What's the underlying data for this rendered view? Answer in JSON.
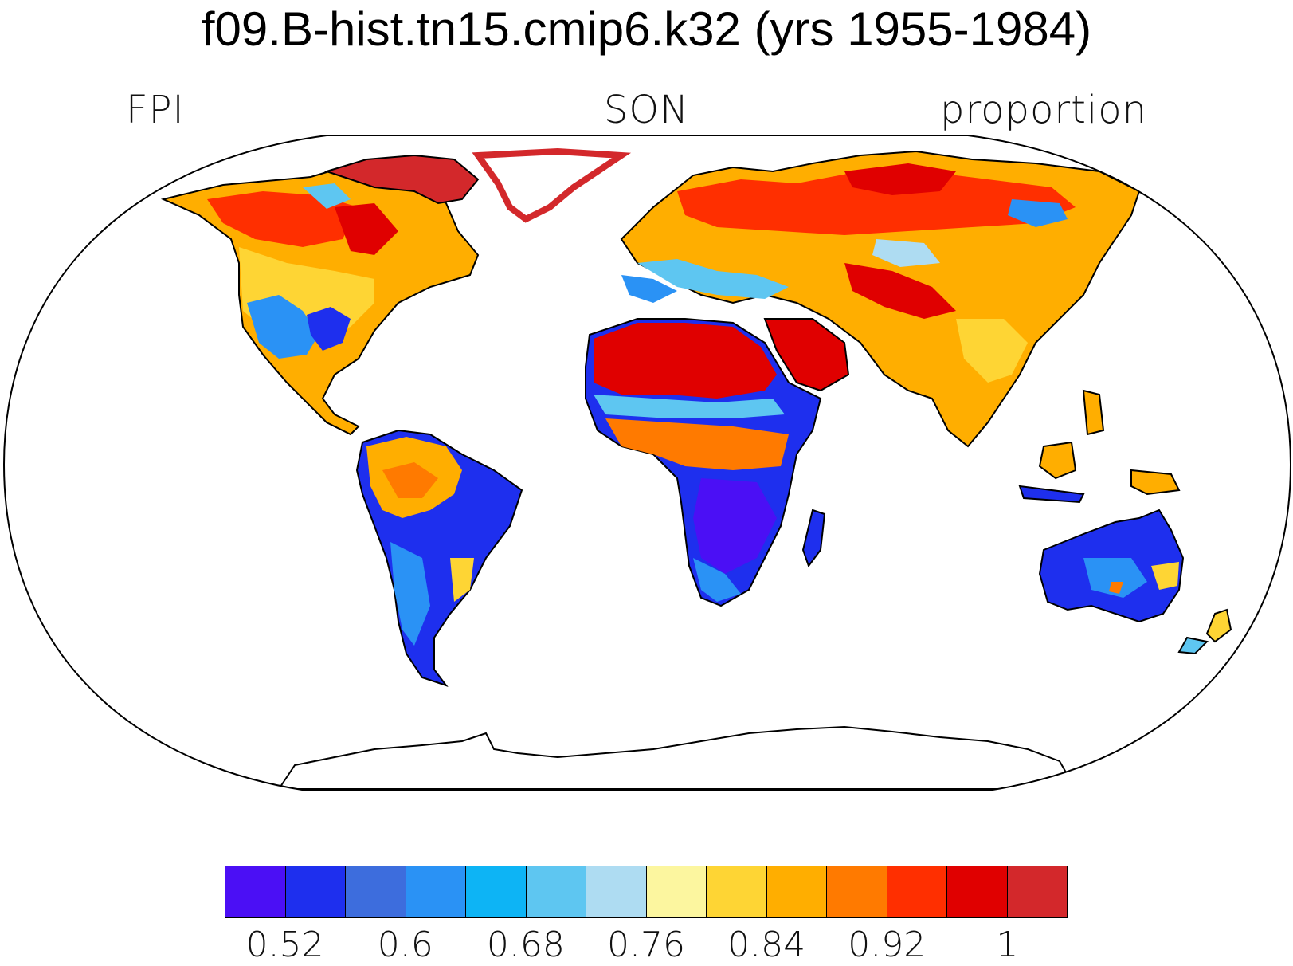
{
  "title": "f09.B-hist.tn15.cmip6.k32 (yrs 1955-1984)",
  "left_label": "FPI",
  "center_label": "SON",
  "right_label": "proportion",
  "colorbar": {
    "colors": [
      "#4b0ff5",
      "#1e2fee",
      "#3d6ddd",
      "#2a92f5",
      "#0db4f5",
      "#5ec6f1",
      "#aedcf2",
      "#fcf69f",
      "#fed534",
      "#ffae00",
      "#ff7a00",
      "#ff2f00",
      "#e00000",
      "#d3282b"
    ],
    "tick_labels": [
      "0.52",
      "0.6",
      "0.68",
      "0.76",
      "0.84",
      "0.92",
      "1"
    ],
    "tick_positions": [
      1,
      3,
      5,
      7,
      9,
      11,
      13
    ]
  },
  "map": {
    "projection": "Robinson",
    "variable": "FPI",
    "season": "SON",
    "units": "proportion"
  }
}
